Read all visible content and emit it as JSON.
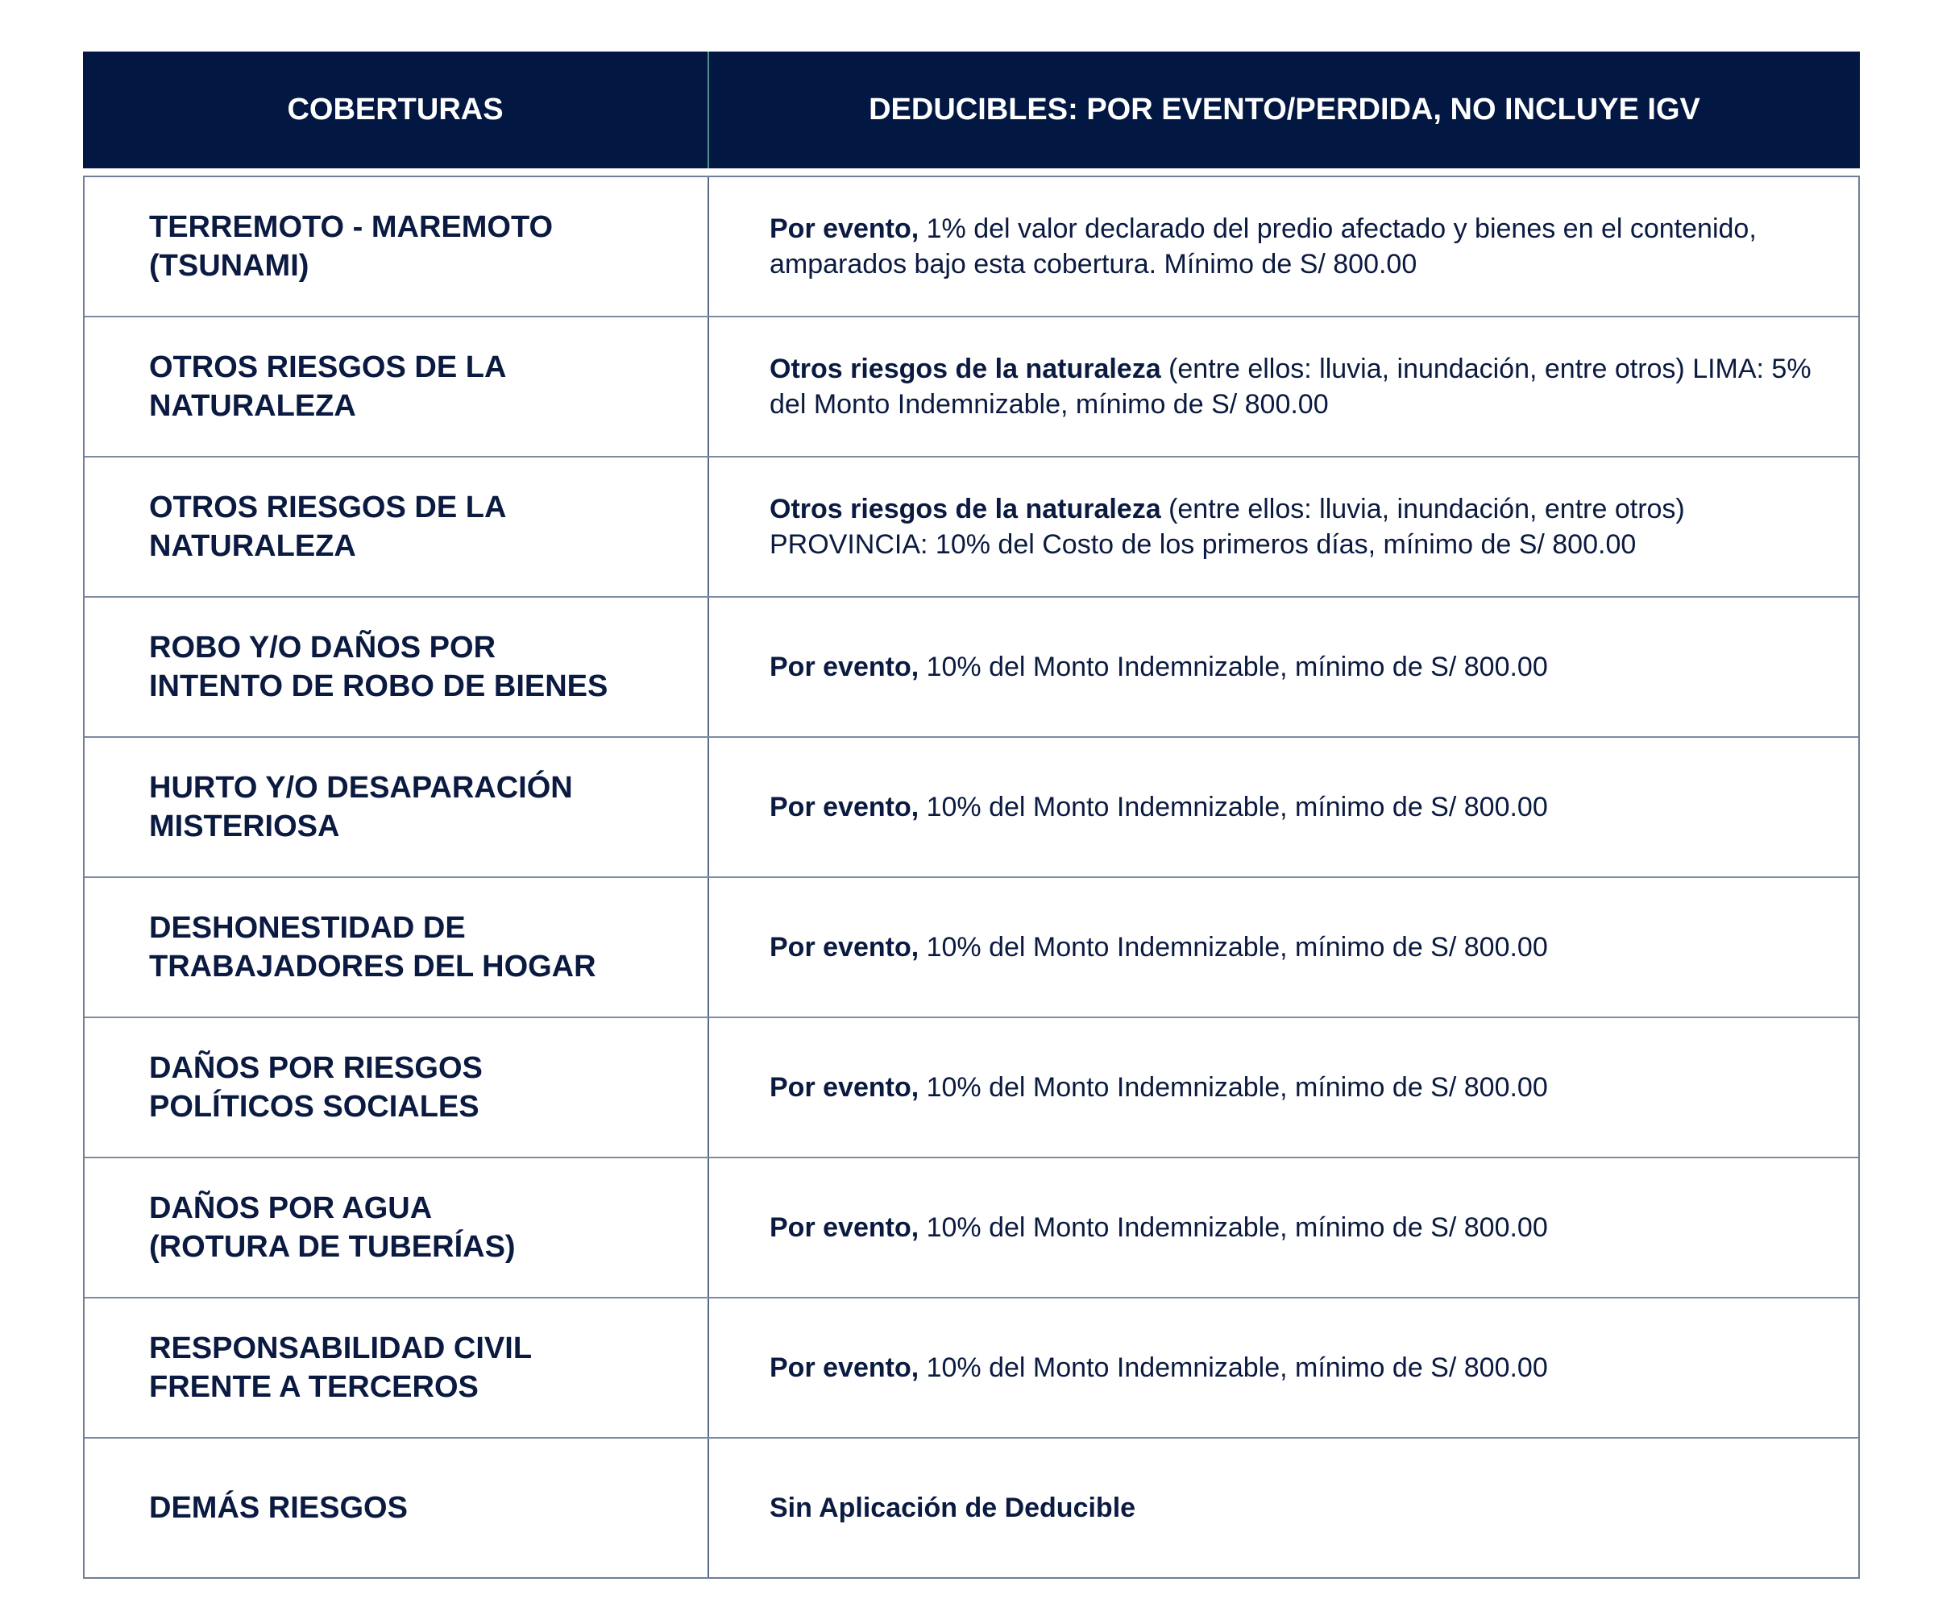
{
  "header": {
    "col1": "COBERTURAS",
    "col2": "DEDUCIBLES: POR EVENTO/PERDIDA, NO INCLUYE IGV"
  },
  "rows": [
    {
      "cobertura": "TERREMOTO - MAREMOTO\n(TSUNAMI)",
      "bold": "Por evento,",
      "text": " 1% del valor declarado del predio afectado y bienes en el contenido, amparados bajo esta cobertura. Mínimo de S/ 800.00"
    },
    {
      "cobertura": "OTROS RIESGOS DE LA\nNATURALEZA",
      "bold": "Otros riesgos de la naturaleza",
      "text": " (entre ellos: lluvia, inundación, entre otros) LIMA: 5% del Monto Indemnizable, mínimo de S/ 800.00"
    },
    {
      "cobertura": "OTROS RIESGOS DE LA\nNATURALEZA",
      "bold": "Otros riesgos de la naturaleza",
      "text": " (entre ellos: lluvia, inundación, entre otros) PROVINCIA: 10% del Costo de los primeros días, mínimo de S/ 800.00"
    },
    {
      "cobertura": "ROBO Y/O DAÑOS POR\nINTENTO DE ROBO DE BIENES",
      "bold": "Por evento,",
      "text": " 10% del Monto Indemnizable, mínimo de S/ 800.00"
    },
    {
      "cobertura": "HURTO Y/O DESAPARACIÓN\nMISTERIOSA",
      "bold": "Por evento,",
      "text": " 10% del Monto Indemnizable, mínimo de S/ 800.00"
    },
    {
      "cobertura": "DESHONESTIDAD DE\nTRABAJADORES DEL HOGAR",
      "bold": "Por evento,",
      "text": " 10% del Monto Indemnizable, mínimo de S/ 800.00"
    },
    {
      "cobertura": "DAÑOS POR RIESGOS\nPOLÍTICOS SOCIALES",
      "bold": "Por evento,",
      "text": " 10% del Monto Indemnizable, mínimo de S/ 800.00"
    },
    {
      "cobertura": "DAÑOS POR AGUA\n(ROTURA DE TUBERÍAS)",
      "bold": "Por evento,",
      "text": " 10% del Monto Indemnizable, mínimo de S/ 800.00"
    },
    {
      "cobertura": "RESPONSABILIDAD CIVIL\nFRENTE A TERCEROS",
      "bold": "Por evento,",
      "text": " 10% del Monto Indemnizable, mínimo de S/ 800.00"
    },
    {
      "cobertura": "DEMÁS RIESGOS",
      "bold": "Sin Aplicación de Deducible",
      "text": ""
    }
  ]
}
